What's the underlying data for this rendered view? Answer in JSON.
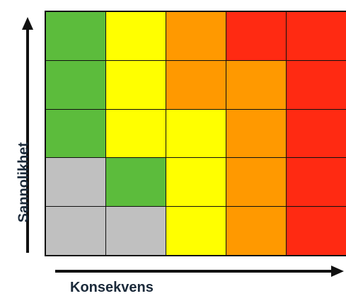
{
  "matrix": {
    "colors": {
      "green": "#5cbc3c",
      "yellow": "#ffff00",
      "orange": "#ff9900",
      "red": "#ff2a12",
      "gray": "#c0c0c0"
    },
    "rows": [
      [
        "green",
        "yellow",
        "orange",
        "red",
        "red"
      ],
      [
        "green",
        "yellow",
        "orange",
        "orange",
        "red"
      ],
      [
        "green",
        "yellow",
        "yellow",
        "orange",
        "red"
      ],
      [
        "gray",
        "green",
        "yellow",
        "orange",
        "red"
      ],
      [
        "gray",
        "gray",
        "yellow",
        "orange",
        "red"
      ]
    ]
  },
  "axes": {
    "y_label": "Sannolikhet",
    "x_label": "Konsekvens"
  },
  "icons": {
    "y_axis": "up-arrow-icon",
    "x_axis": "right-arrow-icon"
  }
}
